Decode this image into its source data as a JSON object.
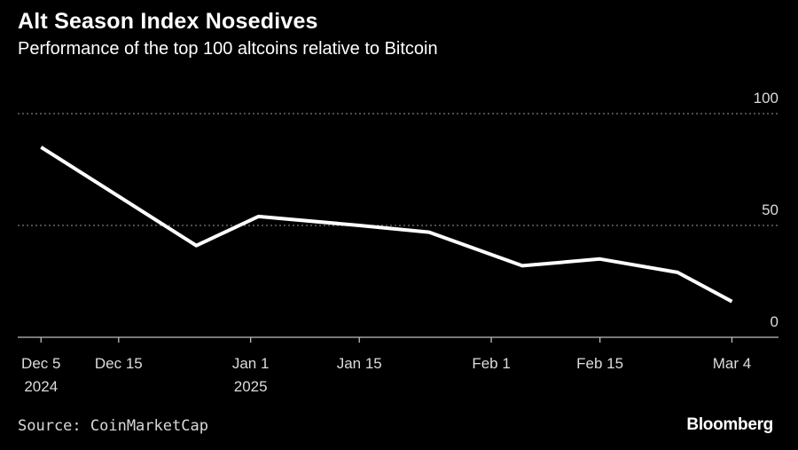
{
  "title": "Alt Season Index Nosedives",
  "subtitle": "Performance of the top 100 altcoins relative to Bitcoin",
  "source": "Source: CoinMarketCap",
  "brand": "Bloomberg",
  "colors": {
    "background": "#000000",
    "line": "#ffffff",
    "grid": "#7a7a7a",
    "text": "#dcdcdc"
  },
  "chart_data": {
    "type": "line",
    "title": "Alt Season Index Nosedives",
    "subtitle": "Performance of the top 100 altcoins relative to Bitcoin",
    "xlabel": "",
    "ylabel": "",
    "ylim": [
      0,
      100
    ],
    "yticks": [
      0,
      50,
      100
    ],
    "grid": true,
    "xlim": [
      "2024-12-02",
      "2025-03-10"
    ],
    "xticks": [
      {
        "date": "2024-12-05",
        "label": "Dec 5",
        "sublabel": "2024"
      },
      {
        "date": "2024-12-15",
        "label": "Dec 15",
        "sublabel": ""
      },
      {
        "date": "2025-01-01",
        "label": "Jan 1",
        "sublabel": "2025"
      },
      {
        "date": "2025-01-15",
        "label": "Jan 15",
        "sublabel": ""
      },
      {
        "date": "2025-02-01",
        "label": "Feb 1",
        "sublabel": ""
      },
      {
        "date": "2025-02-15",
        "label": "Feb 15",
        "sublabel": ""
      },
      {
        "date": "2025-03-04",
        "label": "Mar 4",
        "sublabel": ""
      }
    ],
    "series": [
      {
        "x": [
          "2024-12-05",
          "2024-12-25",
          "2025-01-02",
          "2025-01-15",
          "2025-01-24",
          "2025-02-05",
          "2025-02-15",
          "2025-02-25",
          "2025-03-04"
        ],
        "values": [
          85,
          41,
          54,
          50,
          47,
          32,
          35,
          29,
          16
        ]
      }
    ]
  }
}
